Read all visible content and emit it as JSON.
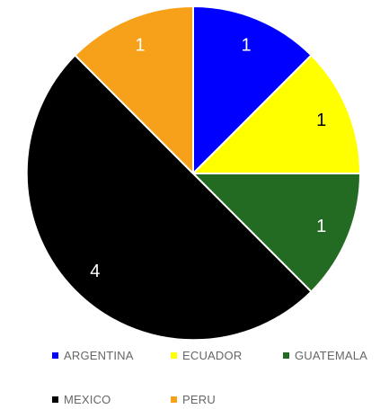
{
  "chart_data": {
    "type": "pie",
    "categories": [
      "ARGENTINA",
      "ECUADOR",
      "GUATEMALA",
      "MEXICO",
      "PERU"
    ],
    "values": [
      1,
      1,
      1,
      4,
      1
    ],
    "data_labels": [
      "1",
      "1",
      "1",
      "4",
      "1"
    ],
    "colors": [
      "#0000ff",
      "#ffff00",
      "#236b23",
      "#000000",
      "#f7a019"
    ],
    "label_colors": [
      "#ffffff",
      "#000000",
      "#ffffff",
      "#ffffff",
      "#ffffff"
    ],
    "start_angle_deg": 0,
    "direction": "clockwise",
    "legend_position": "bottom"
  }
}
